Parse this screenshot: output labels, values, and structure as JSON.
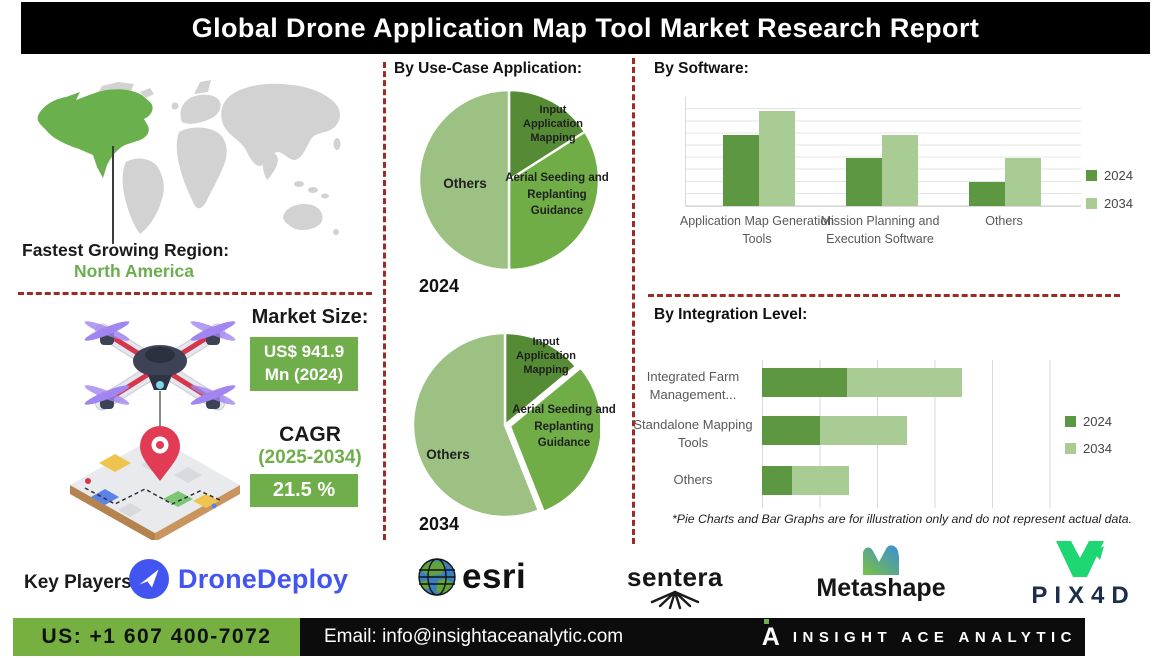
{
  "header": {
    "title": "Global Drone Application Map Tool Market Research Report"
  },
  "region": {
    "label": "Fastest Growing Region:",
    "value": "North America"
  },
  "market": {
    "size_label": "Market Size:",
    "size_value_line1": "US$ 941.9",
    "size_value_line2": "Mn (2024)",
    "cagr_label": "CAGR",
    "cagr_period": "(2025-2034)",
    "cagr_value": "21.5 %"
  },
  "sections": {
    "use_case_title": "By Use-Case Application:",
    "software_title": "By  Software:",
    "integration_title": "By Integration Level:"
  },
  "footnote": "*Pie Charts and Bar Graphs are for illustration only and do not represent actual data.",
  "key_players": {
    "label": "Key Players:",
    "companies": [
      "DroneDeploy",
      "esri",
      "sentera",
      "Metashape",
      "PIX4D"
    ]
  },
  "footer": {
    "phone": "US: +1 607 400-7072",
    "email": "Email: info@insightaceanalytic.com",
    "brand": "INSIGHT ACE ANALYTIC",
    "brand_mark": "A"
  },
  "icons": {
    "dronedeploy-icon": "paper-plane-in-blue-circle",
    "esri-icon": "globe",
    "sentera-icon": "fan-blades",
    "metashape-icon": "wave-gradient-m",
    "pix4d-icon": "green-v-mark",
    "map-highlight": "north-america-green"
  },
  "colors": {
    "pie_dark_green": "#568b35",
    "pie_mid_green": "#70ad47",
    "pie_light_green": "#9dc183",
    "bar_2024": "#5e9741",
    "bar_2034": "#a9cb94",
    "dash_red": "#9c2b23",
    "box_green": "#6fae4b",
    "footer_green": "#76b041",
    "dronedeploy_blue": "#4355f0",
    "pix4d_green": "#1ed672"
  },
  "chart_data": [
    {
      "type": "pie",
      "title": "By Use-Case Application:",
      "year": "2024",
      "labels": [
        "Input Application Mapping",
        "Aerial Seeding and Replanting Guidance",
        "Others"
      ],
      "values": [
        16,
        34,
        50
      ],
      "unit": "percent-illustrative",
      "colors": [
        "#568b35",
        "#70ad47",
        "#9dc183"
      ],
      "note": "illustration only"
    },
    {
      "type": "pie",
      "title": "By Use-Case Application:",
      "year": "2034",
      "labels": [
        "Input Application Mapping",
        "Aerial Seeding and Replanting Guidance",
        "Others"
      ],
      "values": [
        14,
        30,
        56
      ],
      "unit": "percent-illustrative",
      "colors": [
        "#568b35",
        "#70ad47",
        "#9dc183"
      ],
      "note": "illustration only"
    },
    {
      "type": "bar",
      "title": "By  Software:",
      "categories": [
        "Application Map Generation Tools",
        "Mission Planning and Execution Software",
        "Others"
      ],
      "series": [
        {
          "name": "2024",
          "color": "#5e9741",
          "values": [
            65,
            44,
            22
          ]
        },
        {
          "name": "2034",
          "color": "#a9cb94",
          "values": [
            87,
            65,
            44
          ]
        }
      ],
      "ylim": [
        0,
        100
      ],
      "grid": true,
      "legend_position": "right",
      "note": "illustration only"
    },
    {
      "type": "bar-horizontal-stacked",
      "title": "By Integration Level:",
      "categories": [
        "Integrated Farm Management...",
        "Standalone Mapping Tools",
        "Others"
      ],
      "series": [
        {
          "name": "2024",
          "color": "#5e9741",
          "values": [
            37,
            25,
            13
          ]
        },
        {
          "name": "2034",
          "color": "#a9cb94",
          "values": [
            50,
            38,
            25
          ]
        }
      ],
      "xlim": [
        0,
        100
      ],
      "grid": true,
      "legend_position": "right",
      "note": "illustration only"
    }
  ]
}
